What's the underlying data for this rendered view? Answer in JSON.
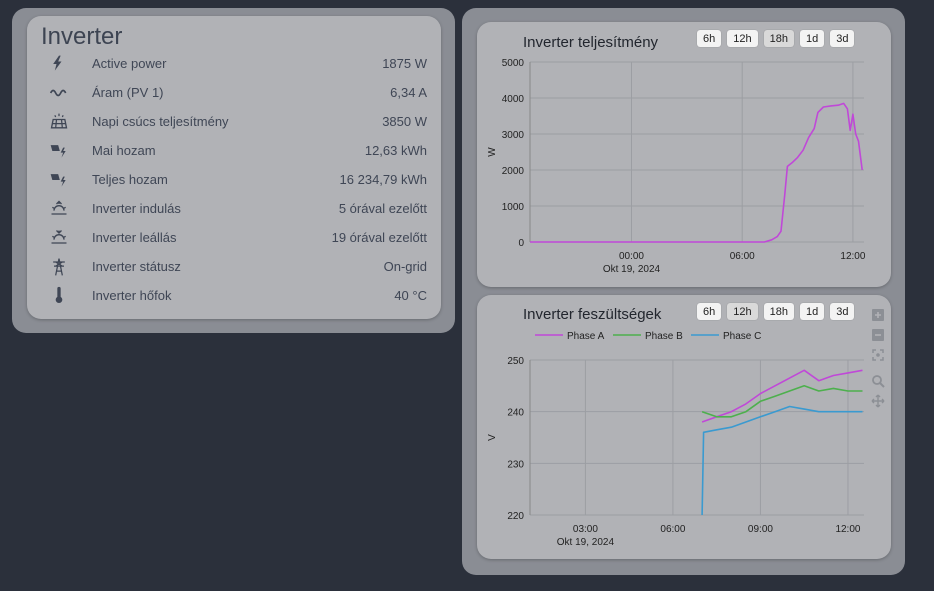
{
  "entities_card": {
    "title": "Inverter",
    "rows": [
      {
        "icon": "flash-icon",
        "label": "Active power",
        "value": "1875 W"
      },
      {
        "icon": "current-ac-icon",
        "label": "Áram (PV 1)",
        "value": "6,34 A"
      },
      {
        "icon": "solar-panel-icon",
        "label": "Napi csúcs teljesítmény",
        "value": "3850 W"
      },
      {
        "icon": "solar-power-icon",
        "label": "Mai hozam",
        "value": "12,63 kWh"
      },
      {
        "icon": "solar-power-icon",
        "label": "Teljes hozam",
        "value": "16 234,79 kWh"
      },
      {
        "icon": "sunrise-icon",
        "label": "Inverter indulás",
        "value": "5 órával ezelőtt"
      },
      {
        "icon": "sunset-icon",
        "label": "Inverter leállás",
        "value": "19 órával ezelőtt"
      },
      {
        "icon": "transmission-tower-icon",
        "label": "Inverter státusz",
        "value": "On-grid"
      },
      {
        "icon": "thermometer-icon",
        "label": "Inverter hőfok",
        "value": "40 °C"
      }
    ]
  },
  "range_buttons": [
    "6h",
    "12h",
    "18h",
    "1d",
    "3d"
  ],
  "chart_data": [
    {
      "type": "line",
      "title": "Inverter teljesítmény",
      "ylabel": "W",
      "ylim": [
        0,
        5000
      ],
      "yticks": [
        0,
        1000,
        2000,
        3000,
        4000,
        5000
      ],
      "x_ticks": [
        "00:00",
        "06:00",
        "12:00"
      ],
      "x_date_label": "Okt 19, 2024",
      "xlim_hours": [
        -5.5,
        12.6
      ],
      "active_range": "18h",
      "color": "#c048d8",
      "series": [
        {
          "points": [
            [
              -5.5,
              0
            ],
            [
              7.2,
              0
            ],
            [
              7.6,
              60
            ],
            [
              7.9,
              150
            ],
            [
              8.1,
              300
            ],
            [
              8.3,
              1300
            ],
            [
              8.45,
              2100
            ],
            [
              8.7,
              2200
            ],
            [
              9.0,
              2350
            ],
            [
              9.3,
              2550
            ],
            [
              9.6,
              2900
            ],
            [
              9.9,
              3150
            ],
            [
              10.1,
              3600
            ],
            [
              10.4,
              3750
            ],
            [
              10.8,
              3780
            ],
            [
              11.2,
              3800
            ],
            [
              11.5,
              3850
            ],
            [
              11.7,
              3700
            ],
            [
              11.85,
              3100
            ],
            [
              12.0,
              3550
            ],
            [
              12.15,
              3000
            ],
            [
              12.3,
              2800
            ],
            [
              12.5,
              2000
            ]
          ]
        }
      ]
    },
    {
      "type": "line",
      "title": "Inverter feszültségek",
      "ylabel": "V",
      "ylim": [
        220,
        250
      ],
      "yticks": [
        220,
        230,
        240,
        250
      ],
      "x_ticks": [
        "03:00",
        "06:00",
        "09:00",
        "12:00"
      ],
      "x_date_label": "Okt 19, 2024",
      "xlim_hours": [
        1.1,
        12.55
      ],
      "active_range": "12h",
      "series": [
        {
          "name": "Phase A",
          "color": "#c048d8",
          "points": [
            [
              7.0,
              238
            ],
            [
              7.5,
              239
            ],
            [
              8.0,
              240
            ],
            [
              8.5,
              241.5
            ],
            [
              9.0,
              243.5
            ],
            [
              9.5,
              245
            ],
            [
              10.0,
              246.5
            ],
            [
              10.5,
              248
            ],
            [
              11.0,
              246
            ],
            [
              11.5,
              247
            ],
            [
              12.0,
              247.5
            ],
            [
              12.5,
              248
            ]
          ]
        },
        {
          "name": "Phase B",
          "color": "#4db04d",
          "points": [
            [
              7.0,
              240
            ],
            [
              7.5,
              239
            ],
            [
              8.0,
              239
            ],
            [
              8.5,
              240
            ],
            [
              9.0,
              242
            ],
            [
              9.5,
              243
            ],
            [
              10.0,
              244
            ],
            [
              10.5,
              245
            ],
            [
              11.0,
              244
            ],
            [
              11.5,
              244.5
            ],
            [
              12.0,
              244
            ],
            [
              12.5,
              244
            ]
          ]
        },
        {
          "name": "Phase C",
          "color": "#3a9ad0",
          "points": [
            [
              7.0,
              220
            ],
            [
              7.05,
              236
            ],
            [
              7.5,
              236.5
            ],
            [
              8.0,
              237
            ],
            [
              8.5,
              238
            ],
            [
              9.0,
              239
            ],
            [
              9.5,
              240
            ],
            [
              10.0,
              241
            ],
            [
              10.5,
              240.5
            ],
            [
              11.0,
              240
            ],
            [
              11.5,
              240
            ],
            [
              12.0,
              240
            ],
            [
              12.5,
              240
            ]
          ]
        }
      ]
    }
  ]
}
